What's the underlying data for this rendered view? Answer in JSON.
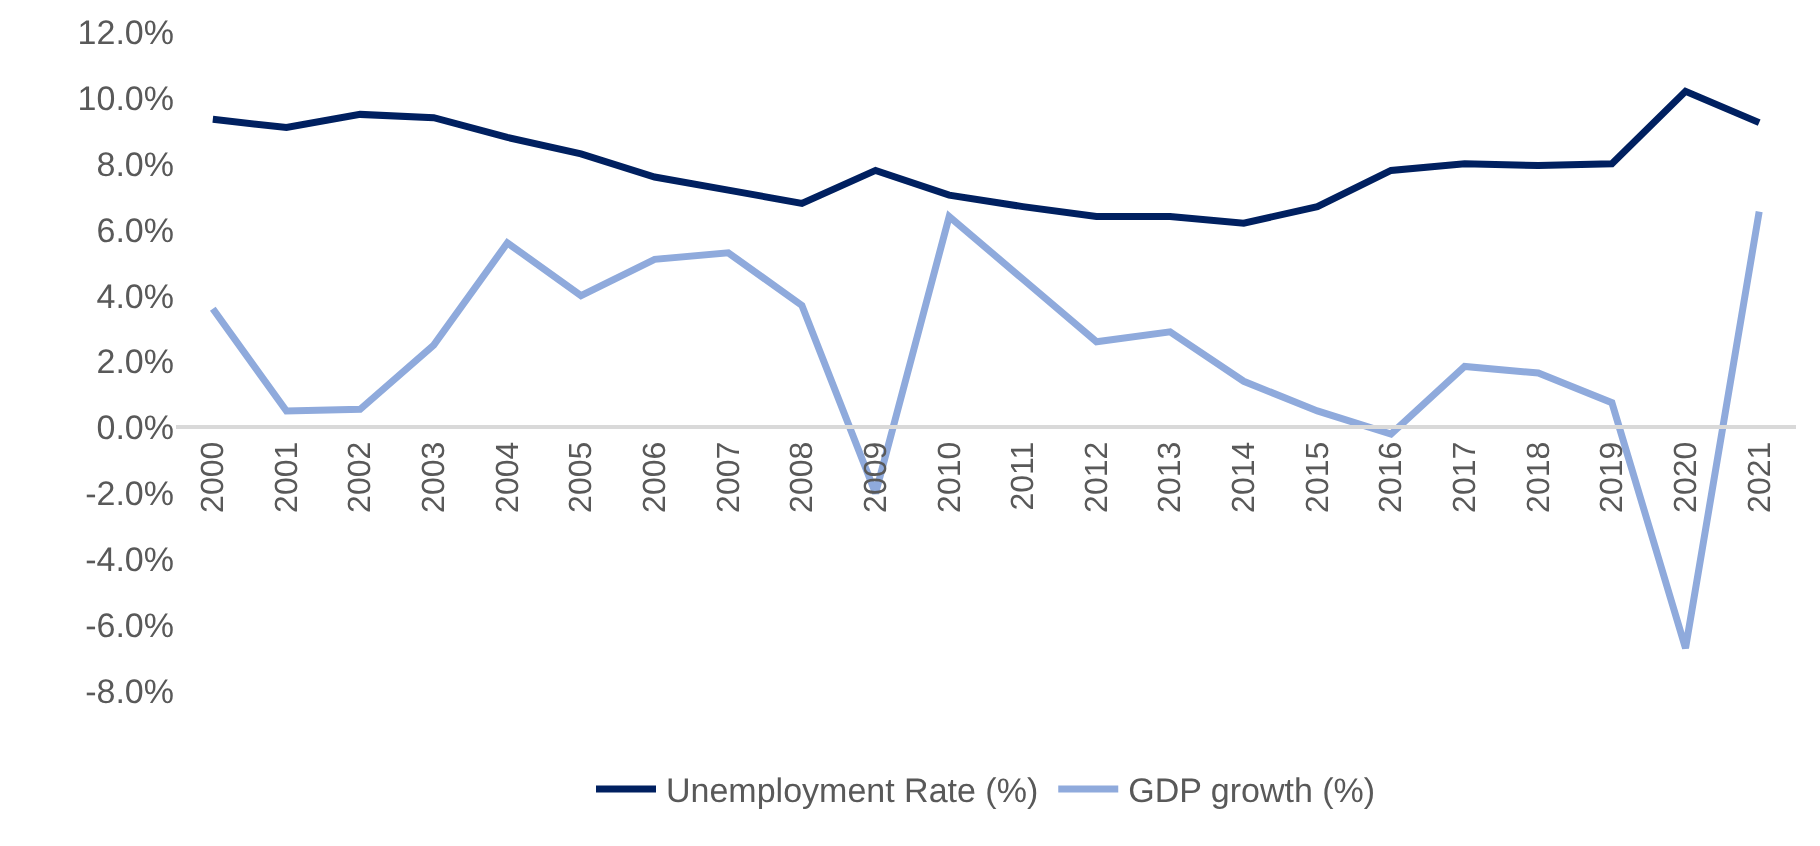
{
  "chart_data": {
    "type": "line",
    "categories": [
      "2000",
      "2001",
      "2002",
      "2003",
      "2004",
      "2005",
      "2006",
      "2007",
      "2008",
      "2009",
      "2010",
      "2011",
      "2012",
      "2013",
      "2014",
      "2015",
      "2016",
      "2017",
      "2018",
      "2019",
      "2020",
      "2021"
    ],
    "series": [
      {
        "name": "Unemployment Rate (%)",
        "color": "#002060",
        "values": [
          9.35,
          9.1,
          9.5,
          9.4,
          8.8,
          8.3,
          7.6,
          7.2,
          6.8,
          7.8,
          7.05,
          6.7,
          6.4,
          6.4,
          6.2,
          6.7,
          7.8,
          8.0,
          7.95,
          8.0,
          10.2,
          9.25
        ]
      },
      {
        "name": "GDP growth (%)",
        "color": "#8faadc",
        "values": [
          3.6,
          0.5,
          0.55,
          2.5,
          5.6,
          4.0,
          5.1,
          5.3,
          3.7,
          -2.0,
          6.4,
          4.5,
          2.6,
          2.9,
          1.4,
          0.5,
          -0.2,
          1.85,
          1.65,
          0.75,
          -6.7,
          6.55
        ]
      }
    ],
    "ylim": [
      -8,
      12
    ],
    "yticks": [
      {
        "value": -8,
        "label": "-8.0%"
      },
      {
        "value": -6,
        "label": "-6.0%"
      },
      {
        "value": -4,
        "label": "-4.0%"
      },
      {
        "value": -2,
        "label": "-2.0%"
      },
      {
        "value": 0,
        "label": "0.0%"
      },
      {
        "value": 2,
        "label": "2.0%"
      },
      {
        "value": 4,
        "label": "4.0%"
      },
      {
        "value": 6,
        "label": "6.0%"
      },
      {
        "value": 8,
        "label": "8.0%"
      },
      {
        "value": 10,
        "label": "10.0%"
      },
      {
        "value": 12,
        "label": "12.0%"
      }
    ],
    "grid": false,
    "legend": "bottom",
    "marker": "none",
    "line_style": "solid"
  }
}
